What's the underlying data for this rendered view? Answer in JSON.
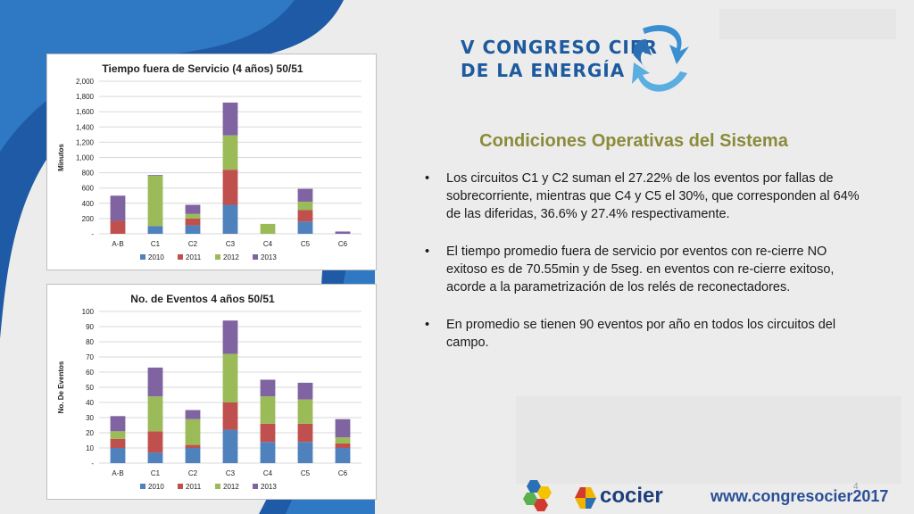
{
  "slide": {
    "logo_line1": "V CONGRESO CIER",
    "logo_line2": "DE LA ENERGÍA",
    "heading": "Condiciones Operativas del Sistema",
    "bullets": [
      "Los circuitos C1 y C2 suman el 27.22% de los eventos por fallas de sobrecorriente, mientras que C4 y C5 el 30%, que corresponden al 64% de las diferidas, 36.6% y 27.4% respectivamente.",
      "El tiempo promedio fuera de servicio por eventos con re-cierre NO exitoso es de 70.55min y de 5seg. en eventos con re-cierre exitoso, acorde a la parametrización de los relés de reconectadores.",
      "En promedio se tienen 90 eventos por año en todos los circuitos del campo."
    ],
    "bullet_char": "•",
    "footer_brand": "cocier",
    "footer_url": "www.congresocier2017",
    "page_number": "4"
  },
  "colors": {
    "2010": "#4f81bd",
    "2011": "#c0504d",
    "2012": "#9bbb59",
    "2013": "#8064a2",
    "heading": "#8b8b3a"
  },
  "chart_data": [
    {
      "type": "bar",
      "stacked": true,
      "title": "Tiempo fuera de Servicio (4 años) 50/51",
      "ylabel": "Minutos",
      "xlabel": "",
      "categories": [
        "A-B",
        "C1",
        "C2",
        "C3",
        "C4",
        "C5",
        "C6"
      ],
      "ylim": [
        0,
        2000
      ],
      "yticks": [
        "-",
        "200",
        "400",
        "600",
        "800",
        "1,000",
        "1,200",
        "1,400",
        "1,600",
        "1,800",
        "2,000"
      ],
      "grid": true,
      "legend": "bottom",
      "series": [
        {
          "name": "2010",
          "values": [
            0,
            100,
            110,
            380,
            0,
            160,
            0
          ]
        },
        {
          "name": "2011",
          "values": [
            170,
            0,
            90,
            460,
            0,
            150,
            0
          ]
        },
        {
          "name": "2012",
          "values": [
            0,
            660,
            60,
            450,
            130,
            110,
            0
          ]
        },
        {
          "name": "2013",
          "values": [
            330,
            10,
            120,
            430,
            0,
            170,
            30
          ]
        }
      ]
    },
    {
      "type": "bar",
      "stacked": true,
      "title": "No. de Eventos 4 años 50/51",
      "ylabel": "No. De Eventos",
      "xlabel": "",
      "categories": [
        "A-B",
        "C1",
        "C2",
        "C3",
        "C4",
        "C5",
        "C6"
      ],
      "ylim": [
        0,
        100
      ],
      "yticks": [
        "-",
        "10",
        "20",
        "30",
        "40",
        "50",
        "60",
        "70",
        "80",
        "90",
        "100"
      ],
      "grid": true,
      "legend": "bottom",
      "series": [
        {
          "name": "2010",
          "values": [
            10,
            7,
            10,
            22,
            14,
            14,
            10
          ]
        },
        {
          "name": "2011",
          "values": [
            6,
            14,
            2,
            18,
            12,
            12,
            3
          ]
        },
        {
          "name": "2012",
          "values": [
            5,
            23,
            17,
            32,
            18,
            16,
            4
          ]
        },
        {
          "name": "2013",
          "values": [
            10,
            19,
            6,
            22,
            11,
            11,
            12
          ]
        }
      ]
    }
  ]
}
